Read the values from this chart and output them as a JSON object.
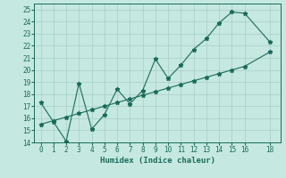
{
  "line1_x": [
    0,
    1,
    2,
    3,
    4,
    5,
    6,
    7,
    8,
    9,
    10,
    11,
    12,
    13,
    14,
    15,
    16,
    18
  ],
  "line1_y": [
    17.3,
    15.7,
    14.1,
    18.9,
    15.1,
    16.3,
    18.4,
    17.2,
    18.3,
    20.9,
    19.3,
    20.4,
    21.7,
    22.6,
    23.9,
    24.8,
    24.7,
    22.3
  ],
  "line2_x": [
    0,
    1,
    2,
    3,
    4,
    5,
    6,
    7,
    8,
    9,
    10,
    11,
    12,
    13,
    14,
    15,
    16,
    18
  ],
  "line2_y": [
    15.5,
    15.8,
    16.1,
    16.4,
    16.7,
    17.0,
    17.3,
    17.6,
    17.9,
    18.2,
    18.5,
    18.8,
    19.1,
    19.4,
    19.7,
    20.0,
    20.3,
    21.5
  ],
  "line_color": "#1a6b5a",
  "marker": "*",
  "xlabel": "Humidex (Indice chaleur)",
  "xlim": [
    -0.5,
    18.8
  ],
  "ylim": [
    14,
    25.5
  ],
  "yticks": [
    14,
    15,
    16,
    17,
    18,
    19,
    20,
    21,
    22,
    23,
    24,
    25
  ],
  "xticks": [
    0,
    1,
    2,
    3,
    4,
    5,
    6,
    7,
    8,
    9,
    10,
    11,
    12,
    13,
    14,
    15,
    16,
    18
  ],
  "bg_color": "#c5e8e0",
  "grid_color": "#a8cec8",
  "tick_fontsize": 5.5,
  "label_fontsize": 6.5
}
